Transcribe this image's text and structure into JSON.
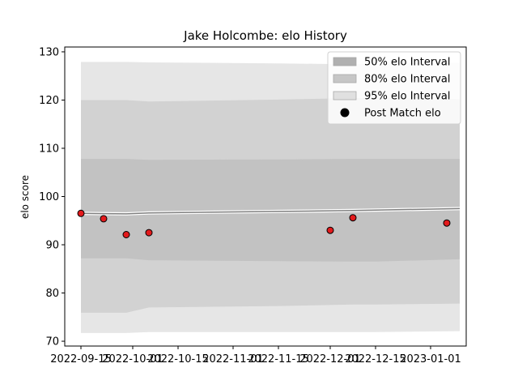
{
  "chart_data": {
    "type": "line",
    "title": "Jake Holcombe: elo History",
    "xlabel": "",
    "ylabel": "elo score",
    "xlim": [
      "2022-09-10",
      "2023-01-12"
    ],
    "ylim": [
      69,
      131
    ],
    "x_ticks": [
      "2022-09-15",
      "2022-10-01",
      "2022-10-15",
      "2022-11-01",
      "2022-11-15",
      "2022-12-01",
      "2022-12-15",
      "2023-01-01"
    ],
    "y_ticks": [
      70,
      80,
      90,
      100,
      110,
      120,
      130
    ],
    "grid": false,
    "legend_position": "top-right",
    "legend": [
      {
        "label": "50% elo Interval",
        "kind": "band",
        "color": "#b0b0b0"
      },
      {
        "label": "80% elo Interval",
        "kind": "band",
        "color": "#c6c6c6"
      },
      {
        "label": "95% elo Interval",
        "kind": "band",
        "color": "#e0e0e0"
      },
      {
        "label": "Post Match elo",
        "kind": "marker",
        "color": "#000000"
      }
    ],
    "band_x": [
      "2022-09-15",
      "2022-09-29",
      "2022-10-06",
      "2022-11-15",
      "2022-12-08",
      "2022-12-15",
      "2023-01-10"
    ],
    "mean": [
      96.5,
      96.4,
      96.6,
      96.9,
      97.1,
      97.2,
      97.5
    ],
    "bands": {
      "p95_upper": [
        127.9,
        127.9,
        127.8,
        127.6,
        127.4,
        127.5,
        127.7
      ],
      "p80_upper": [
        120.0,
        120.0,
        119.7,
        120.1,
        120.4,
        120.5,
        120.2
      ],
      "p50_upper": [
        107.8,
        107.8,
        107.6,
        107.7,
        107.8,
        107.8,
        107.8
      ],
      "p50_lower": [
        87.2,
        87.2,
        86.8,
        86.6,
        86.5,
        86.5,
        87.0
      ],
      "p80_lower": [
        75.9,
        75.9,
        77.0,
        77.3,
        77.6,
        77.6,
        77.8
      ],
      "p95_lower": [
        71.7,
        71.7,
        71.9,
        71.9,
        71.9,
        71.9,
        72.1
      ]
    },
    "series": [
      {
        "name": "Post Match elo",
        "x": [
          "2022-09-15",
          "2022-09-22",
          "2022-09-29",
          "2022-10-06",
          "2022-12-01",
          "2022-12-08",
          "2023-01-06"
        ],
        "y": [
          96.5,
          95.4,
          92.1,
          92.5,
          93.0,
          95.6,
          94.5
        ],
        "marker_color": "#e31a1c",
        "edge_color": "#000000"
      }
    ]
  }
}
